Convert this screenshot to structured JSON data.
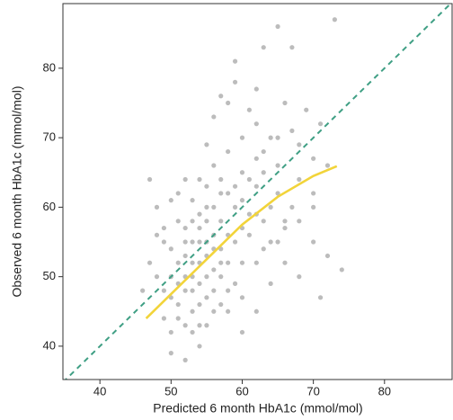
{
  "chart_data": {
    "type": "scatter",
    "x_label": "Predicted 6 month HbA1c (mmol/mol)",
    "y_label": "Observed 6 month HbA1c (mmol/mol)",
    "xlim": [
      34.8,
      89.5
    ],
    "ylim": [
      35.2,
      89.3
    ],
    "xticks": [
      40,
      50,
      60,
      70,
      80
    ],
    "yticks": [
      40,
      50,
      60,
      70,
      80
    ],
    "series": [
      {
        "mode": "markers",
        "color": "#7a7a7a",
        "x": [
          52,
          53,
          54,
          55,
          51,
          50,
          52,
          56,
          57,
          58,
          54,
          53,
          55,
          56,
          52,
          51,
          50,
          49,
          53,
          54,
          55,
          57,
          58,
          59,
          60,
          61,
          62,
          63,
          60,
          59,
          56,
          52,
          51,
          50,
          53,
          55,
          57,
          58,
          54,
          53,
          55,
          57,
          60,
          62,
          64,
          65,
          63,
          66,
          67,
          68,
          70,
          72,
          71,
          73,
          65,
          63,
          67,
          59,
          58,
          56,
          60,
          62,
          64,
          66,
          68,
          70,
          69,
          47,
          48,
          47,
          48,
          46,
          49,
          50,
          52,
          54,
          60,
          62,
          64,
          66,
          68,
          70,
          72,
          74,
          71,
          58,
          56,
          54,
          52,
          50,
          51,
          49,
          48,
          57,
          59,
          61,
          63,
          65,
          55,
          57,
          59,
          61,
          62,
          58,
          56,
          55,
          53,
          52,
          54,
          56,
          53,
          51,
          55,
          57,
          58,
          60,
          62,
          64,
          66,
          68,
          70,
          54,
          52,
          50,
          49,
          53,
          55,
          57,
          59,
          51,
          62,
          65,
          67,
          60,
          61,
          63,
          65,
          56,
          54
        ],
        "values": [
          48,
          50,
          52,
          55,
          46,
          47,
          53,
          51,
          54,
          56,
          49,
          45,
          58,
          60,
          57,
          52,
          50,
          48,
          55,
          46,
          47,
          50,
          52,
          55,
          57,
          56,
          59,
          58,
          52,
          49,
          45,
          43,
          44,
          42,
          42,
          43,
          46,
          48,
          59,
          61,
          63,
          64,
          61,
          63,
          60,
          62,
          65,
          57,
          60,
          64,
          62,
          66,
          72,
          87,
          86,
          83,
          83,
          81,
          75,
          73,
          70,
          72,
          70,
          75,
          69,
          67,
          74,
          52,
          56,
          64,
          60,
          48,
          44,
          39,
          38,
          40,
          42,
          45,
          49,
          52,
          50,
          55,
          53,
          51,
          47,
          62,
          66,
          64,
          64,
          61,
          58,
          55,
          50,
          58,
          60,
          64,
          68,
          66,
          69,
          76,
          78,
          74,
          77,
          68,
          56,
          53,
          52,
          50,
          55,
          54,
          48,
          49,
          50,
          52,
          45,
          47,
          52,
          55,
          58,
          58,
          60,
          57,
          55,
          54,
          57,
          58,
          60,
          62,
          63,
          62,
          67,
          70,
          71,
          65,
          59,
          54,
          55,
          48,
          43
        ]
      },
      {
        "mode": "line",
        "dash": true,
        "color": "#3f9f84",
        "x": [
          34.8,
          89.5
        ],
        "values": [
          34.8,
          89.5
        ]
      },
      {
        "mode": "line",
        "dash": false,
        "color": "#f2d43a",
        "x": [
          46.5,
          50,
          55,
          60,
          65,
          70,
          73.3
        ],
        "values": [
          44,
          47.5,
          52.5,
          57.5,
          61.5,
          64.5,
          65.9
        ]
      }
    ]
  }
}
